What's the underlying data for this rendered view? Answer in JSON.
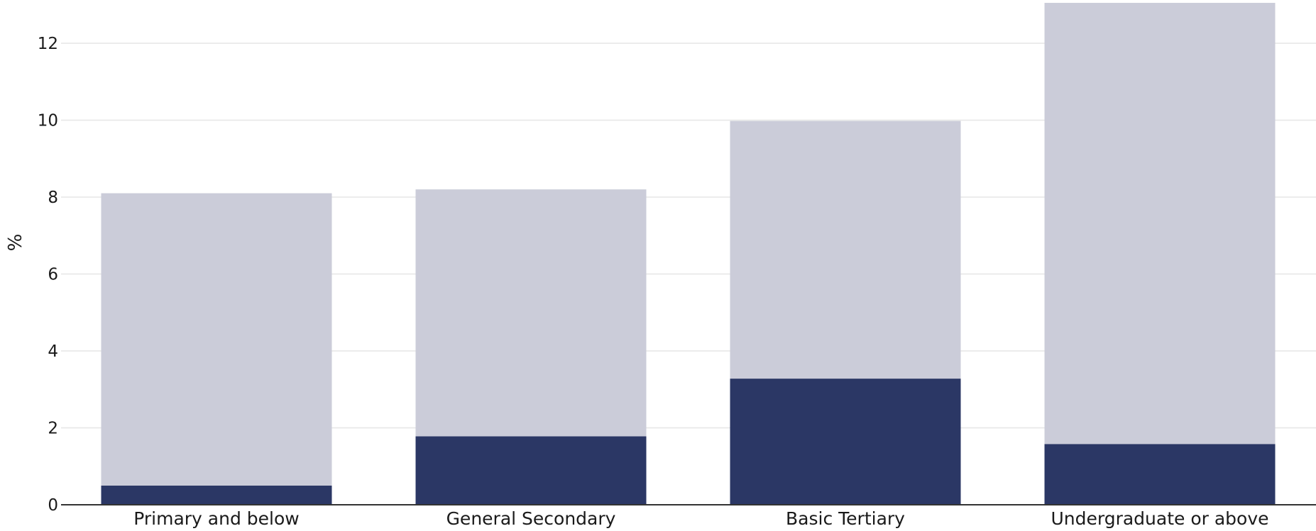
{
  "chart_data": {
    "type": "bar",
    "stacked": true,
    "categories": [
      "Primary and below",
      "General Secondary",
      "Basic Tertiary",
      "Undergraduate or above"
    ],
    "series": [
      {
        "values": [
          0.5,
          1.78,
          3.28,
          1.58
        ],
        "color": "#2b3765"
      },
      {
        "values": [
          7.6,
          6.42,
          6.7,
          11.47
        ],
        "color": "#cbccd9"
      }
    ],
    "totals": [
      8.1,
      8.2,
      9.98,
      13.05
    ],
    "ylabel": "%",
    "yticks": [
      0,
      2,
      4,
      6,
      8,
      10,
      12
    ],
    "ylim": [
      0,
      13.05
    ],
    "grid": true
  }
}
